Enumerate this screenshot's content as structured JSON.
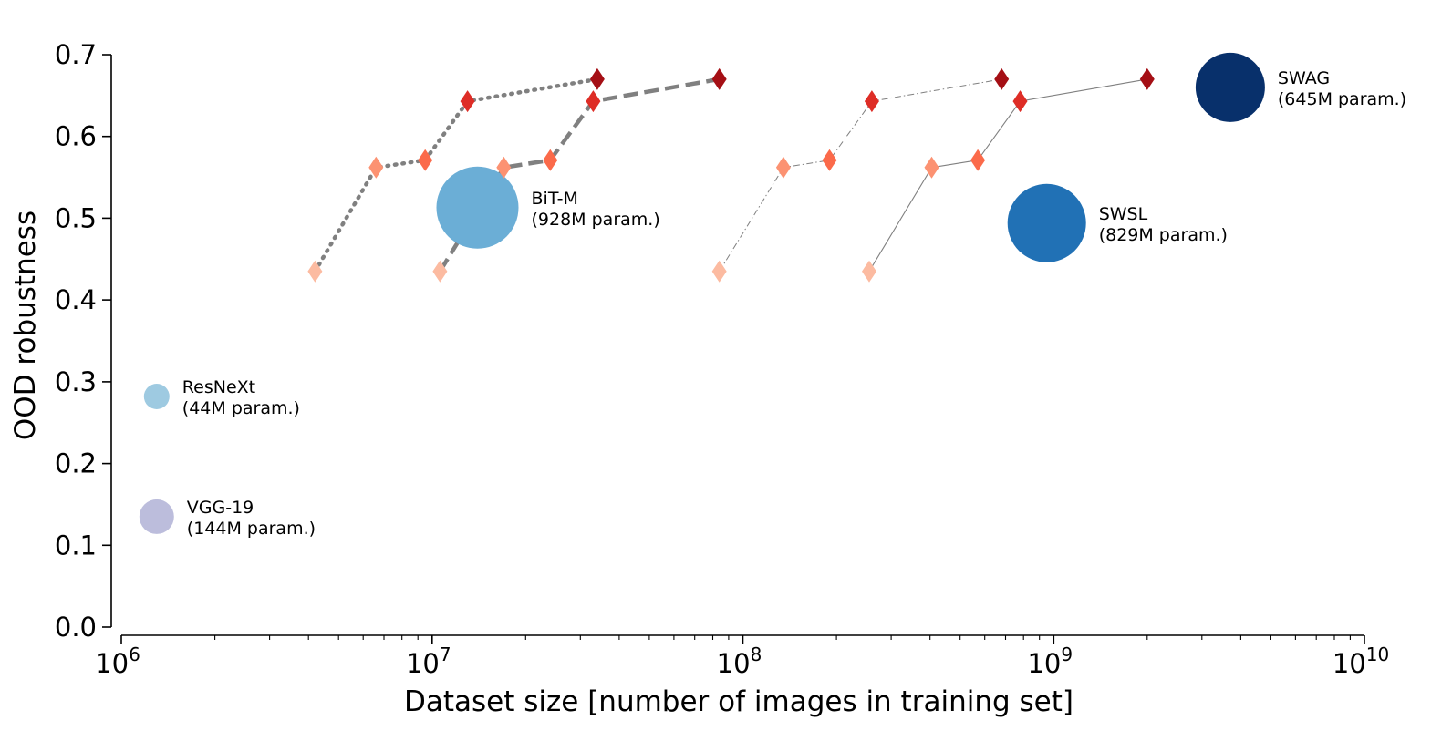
{
  "chart_data": {
    "type": "scatter",
    "title": "",
    "xlabel": "Dataset size [number of images in training set]",
    "ylabel": "OOD robustness",
    "x_scale": "log",
    "xlim": [
      1000000,
      10000000000
    ],
    "ylim": [
      0.0,
      0.7
    ],
    "x_ticks": [
      {
        "value": 1000000,
        "base": "10",
        "exp": "6"
      },
      {
        "value": 10000000,
        "base": "10",
        "exp": "7"
      },
      {
        "value": 100000000,
        "base": "10",
        "exp": "8"
      },
      {
        "value": 1000000000,
        "base": "10",
        "exp": "9"
      },
      {
        "value": 10000000000,
        "base": "10",
        "exp": "10"
      }
    ],
    "y_ticks": [
      {
        "value": 0.0,
        "label": "0.0"
      },
      {
        "value": 0.1,
        "label": "0.1"
      },
      {
        "value": 0.2,
        "label": "0.2"
      },
      {
        "value": 0.3,
        "label": "0.3"
      },
      {
        "value": 0.4,
        "label": "0.4"
      },
      {
        "value": 0.5,
        "label": "0.5"
      },
      {
        "value": 0.6,
        "label": "0.6"
      },
      {
        "value": 0.7,
        "label": "0.7"
      }
    ],
    "grid": false,
    "models": [
      {
        "key": "vgg19",
        "name": "VGG-19",
        "params": "(144M param.)",
        "x": 1300000,
        "y": 0.135,
        "color": "#bcbddc"
      },
      {
        "key": "resnext",
        "name": "ResNeXt",
        "params": "(44M param.)",
        "x": 1300000,
        "y": 0.282,
        "color": "#9ecae1"
      },
      {
        "key": "bitm",
        "name": "BiT-M",
        "params": "(928M param.)",
        "x": 14000000,
        "y": 0.513,
        "color": "#6baed6"
      },
      {
        "key": "swsl",
        "name": "SWSL",
        "params": "(829M param.)",
        "x": 950000000,
        "y": 0.494,
        "color": "#2171b5"
      },
      {
        "key": "swag",
        "name": "SWAG",
        "params": "(645M param.)",
        "x": 3700000000,
        "y": 0.66,
        "color": "#08306b"
      }
    ],
    "series": [
      {
        "line_style": "dotted",
        "line_color": "#808080",
        "x": [
          4200000,
          6600000,
          9500000,
          13000000,
          34000000
        ],
        "y": [
          0.435,
          0.562,
          0.571,
          0.643,
          0.67
        ]
      },
      {
        "line_style": "dashed",
        "line_color": "#808080",
        "x": [
          10600000,
          17000000,
          24000000,
          33000000,
          84000000
        ],
        "y": [
          0.435,
          0.562,
          0.571,
          0.643,
          0.67
        ]
      },
      {
        "line_style": "dashdot",
        "line_color": "#808080",
        "x": [
          84000000,
          135000000,
          190000000,
          260000000,
          680000000
        ],
        "y": [
          0.435,
          0.562,
          0.571,
          0.643,
          0.67
        ]
      },
      {
        "line_style": "solid",
        "line_color": "#808080",
        "x": [
          255000000,
          405000000,
          570000000,
          780000000,
          2000000000
        ],
        "y": [
          0.435,
          0.562,
          0.571,
          0.643,
          0.67
        ]
      }
    ],
    "marker_shape": "diamond",
    "marker_colors": [
      "#fcbba1",
      "#fc9272",
      "#fb6a4a",
      "#de2d26",
      "#a50f15"
    ]
  }
}
